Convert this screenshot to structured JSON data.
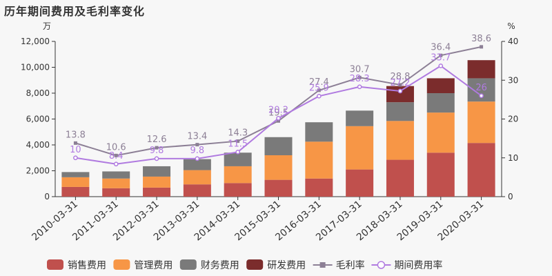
{
  "title": "历年期间费用及毛利率变化",
  "chart_data": {
    "type": "bar",
    "title": "历年期间费用及毛利率变化",
    "categories": [
      "2010-03-31",
      "2011-03-31",
      "2012-03-31",
      "2013-03-31",
      "2014-03-31",
      "2015-03-31",
      "2016-03-31",
      "2017-03-31",
      "2018-03-31",
      "2019-03-31",
      "2020-03-31"
    ],
    "y_left": {
      "unit": "万",
      "ylim": [
        0,
        12000
      ],
      "ticks": [
        "0",
        "2,000",
        "4,000",
        "6,000",
        "8,000",
        "10,000",
        "12,000"
      ],
      "tick_values": [
        0,
        2000,
        4000,
        6000,
        8000,
        10000,
        12000
      ]
    },
    "y_right": {
      "unit": "%",
      "ylim": [
        0,
        40
      ],
      "ticks": [
        "0",
        "10",
        "20",
        "30",
        "40"
      ],
      "tick_values": [
        0,
        10,
        20,
        30,
        40
      ]
    },
    "series": [
      {
        "name": "销售费用",
        "kind": "bar",
        "stack": true,
        "color": "#c0504d",
        "values": [
          750,
          650,
          700,
          950,
          1050,
          1300,
          1400,
          2100,
          2850,
          3400,
          4150
        ]
      },
      {
        "name": "管理费用",
        "kind": "bar",
        "stack": true,
        "color": "#f79646",
        "values": [
          750,
          750,
          850,
          1100,
          1300,
          1900,
          2850,
          3350,
          3000,
          3100,
          3200
        ]
      },
      {
        "name": "财务费用",
        "kind": "bar",
        "stack": true,
        "color": "#7a7a7a",
        "values": [
          400,
          550,
          800,
          850,
          1050,
          1400,
          1500,
          1200,
          1450,
          1500,
          1800
        ]
      },
      {
        "name": "研发费用",
        "kind": "bar",
        "stack": true,
        "color": "#7b2c2c",
        "values": [
          0,
          0,
          0,
          0,
          0,
          0,
          0,
          0,
          1250,
          1150,
          1400
        ]
      },
      {
        "name": "毛利率",
        "kind": "line",
        "axis": "right",
        "color": "#8c7f95",
        "marker": "square",
        "values": [
          13.8,
          10.6,
          12.6,
          13.4,
          14.3,
          19.5,
          27.4,
          30.7,
          28.8,
          36.4,
          38.6
        ],
        "labels": [
          "13.8",
          "10.6",
          "12.6",
          "13.4",
          "14.3",
          "19.5",
          "27.4",
          "30.7",
          "28.8",
          "36.4",
          "38.6"
        ]
      },
      {
        "name": "期间费用率",
        "kind": "line",
        "axis": "right",
        "color": "#b07ae0",
        "marker": "circle",
        "values": [
          10,
          8.4,
          9.8,
          9.8,
          11.5,
          20.2,
          25.9,
          28.3,
          27.2,
          33.7,
          26
        ],
        "labels": [
          "10",
          "8.4",
          "9.8",
          "9.8",
          "11.5",
          "20.2",
          "25.9",
          "28.3",
          "27.2",
          "33.7",
          "26"
        ]
      }
    ],
    "legend": "bottom",
    "grid": false
  }
}
